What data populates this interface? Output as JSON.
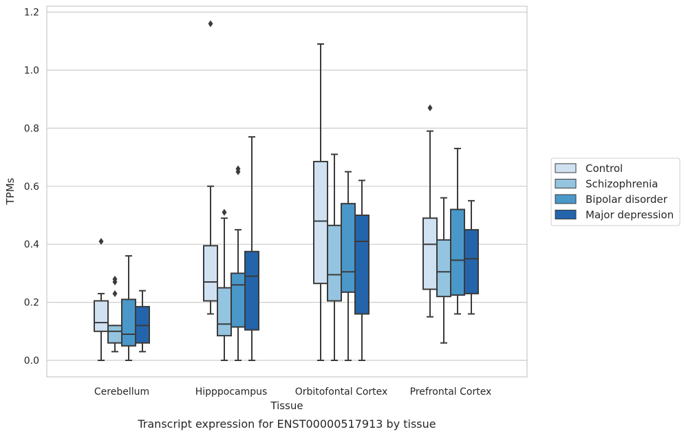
{
  "chart_data": {
    "type": "box",
    "title": "",
    "caption": "Transcript expression for ENST00000517913 by tissue",
    "xlabel": "Tissue",
    "ylabel": "TPMs",
    "ylim": [
      -0.055,
      1.225
    ],
    "yticks": [
      0.0,
      0.2,
      0.4,
      0.6,
      0.8,
      1.0,
      1.2
    ],
    "ytick_labels": [
      "0.0",
      "0.2",
      "0.4",
      "0.6",
      "0.8",
      "1.0",
      "1.2"
    ],
    "grid": "horizontal",
    "legend_position": "right",
    "categories": [
      "Cerebellum",
      "Hipppocampus",
      "Orbitofontal Cortex",
      "Prefrontal Cortex"
    ],
    "series": [
      {
        "name": "Control",
        "color": "#d0e1f2",
        "boxes": [
          {
            "whisker_low": 0.0,
            "q1": 0.1,
            "median": 0.13,
            "q3": 0.205,
            "whisker_high": 0.23,
            "outliers": [
              0.41
            ]
          },
          {
            "whisker_low": 0.16,
            "q1": 0.205,
            "median": 0.27,
            "q3": 0.395,
            "whisker_high": 0.6,
            "outliers": [
              1.16
            ]
          },
          {
            "whisker_low": 0.0,
            "q1": 0.265,
            "median": 0.48,
            "q3": 0.685,
            "whisker_high": 1.09,
            "outliers": []
          },
          {
            "whisker_low": 0.15,
            "q1": 0.245,
            "median": 0.4,
            "q3": 0.49,
            "whisker_high": 0.79,
            "outliers": [
              0.87
            ]
          }
        ]
      },
      {
        "name": "Schizophrenia",
        "color": "#94c4df",
        "boxes": [
          {
            "whisker_low": 0.03,
            "q1": 0.06,
            "median": 0.1,
            "q3": 0.12,
            "whisker_high": 0.12,
            "outliers": [
              0.28,
              0.27,
              0.23
            ]
          },
          {
            "whisker_low": 0.0,
            "q1": 0.085,
            "median": 0.125,
            "q3": 0.25,
            "whisker_high": 0.49,
            "outliers": [
              0.51
            ]
          },
          {
            "whisker_low": 0.0,
            "q1": 0.205,
            "median": 0.295,
            "q3": 0.465,
            "whisker_high": 0.71,
            "outliers": []
          },
          {
            "whisker_low": 0.06,
            "q1": 0.22,
            "median": 0.305,
            "q3": 0.415,
            "whisker_high": 0.56,
            "outliers": []
          }
        ]
      },
      {
        "name": "Bipolar disorder",
        "color": "#4a98c9",
        "boxes": [
          {
            "whisker_low": 0.0,
            "q1": 0.05,
            "median": 0.09,
            "q3": 0.21,
            "whisker_high": 0.36,
            "outliers": []
          },
          {
            "whisker_low": 0.0,
            "q1": 0.115,
            "median": 0.26,
            "q3": 0.3,
            "whisker_high": 0.45,
            "outliers": [
              0.66,
              0.65
            ]
          },
          {
            "whisker_low": 0.0,
            "q1": 0.235,
            "median": 0.305,
            "q3": 0.54,
            "whisker_high": 0.65,
            "outliers": []
          },
          {
            "whisker_low": 0.16,
            "q1": 0.225,
            "median": 0.345,
            "q3": 0.52,
            "whisker_high": 0.73,
            "outliers": []
          }
        ]
      },
      {
        "name": "Major depression",
        "color": "#2464ab",
        "boxes": [
          {
            "whisker_low": 0.03,
            "q1": 0.06,
            "median": 0.12,
            "q3": 0.185,
            "whisker_high": 0.24,
            "outliers": []
          },
          {
            "whisker_low": 0.0,
            "q1": 0.105,
            "median": 0.29,
            "q3": 0.375,
            "whisker_high": 0.77,
            "outliers": []
          },
          {
            "whisker_low": 0.0,
            "q1": 0.16,
            "median": 0.41,
            "q3": 0.5,
            "whisker_high": 0.62,
            "outliers": []
          },
          {
            "whisker_low": 0.16,
            "q1": 0.23,
            "median": 0.35,
            "q3": 0.45,
            "whisker_high": 0.55,
            "outliers": []
          }
        ]
      }
    ]
  }
}
